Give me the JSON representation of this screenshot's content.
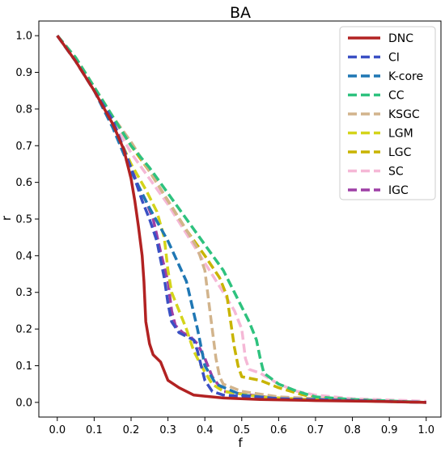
{
  "chart_data": {
    "type": "line",
    "title": "BA",
    "xlabel": "f",
    "ylabel": "r",
    "xlim": [
      -0.05,
      1.04
    ],
    "ylim": [
      -0.04,
      1.04
    ],
    "xticks": [
      "0.0",
      "0.1",
      "0.2",
      "0.3",
      "0.4",
      "0.5",
      "0.6",
      "0.7",
      "0.8",
      "0.9",
      "1.0"
    ],
    "yticks": [
      "0.0",
      "0.1",
      "0.2",
      "0.3",
      "0.4",
      "0.5",
      "0.6",
      "0.7",
      "0.8",
      "0.9",
      "1.0"
    ],
    "grid": false,
    "legend_position": "top-right",
    "series": [
      {
        "name": "DNC",
        "color": "#b22222",
        "dash": "solid",
        "points": [
          [
            0,
            1.0
          ],
          [
            0.05,
            0.93
          ],
          [
            0.1,
            0.85
          ],
          [
            0.15,
            0.76
          ],
          [
            0.18,
            0.69
          ],
          [
            0.2,
            0.61
          ],
          [
            0.21,
            0.55
          ],
          [
            0.22,
            0.48
          ],
          [
            0.23,
            0.4
          ],
          [
            0.235,
            0.33
          ],
          [
            0.24,
            0.22
          ],
          [
            0.25,
            0.16
          ],
          [
            0.26,
            0.13
          ],
          [
            0.28,
            0.11
          ],
          [
            0.3,
            0.06
          ],
          [
            0.33,
            0.04
          ],
          [
            0.37,
            0.02
          ],
          [
            0.45,
            0.012
          ],
          [
            0.55,
            0.008
          ],
          [
            0.7,
            0.005
          ],
          [
            0.85,
            0.003
          ],
          [
            1.0,
            0.0
          ]
        ]
      },
      {
        "name": "CI",
        "color": "#3a50c4",
        "dash": "dashed",
        "points": [
          [
            0,
            1.0
          ],
          [
            0.05,
            0.93
          ],
          [
            0.1,
            0.85
          ],
          [
            0.15,
            0.77
          ],
          [
            0.2,
            0.64
          ],
          [
            0.23,
            0.55
          ],
          [
            0.25,
            0.5
          ],
          [
            0.27,
            0.44
          ],
          [
            0.29,
            0.34
          ],
          [
            0.3,
            0.27
          ],
          [
            0.31,
            0.22
          ],
          [
            0.33,
            0.19
          ],
          [
            0.35,
            0.18
          ],
          [
            0.37,
            0.17
          ],
          [
            0.38,
            0.14
          ],
          [
            0.39,
            0.1
          ],
          [
            0.4,
            0.06
          ],
          [
            0.42,
            0.03
          ],
          [
            0.45,
            0.02
          ],
          [
            0.6,
            0.01
          ],
          [
            0.8,
            0.005
          ],
          [
            1.0,
            0.0
          ]
        ]
      },
      {
        "name": "K-core",
        "color": "#1f77b4",
        "dash": "dashed",
        "points": [
          [
            0,
            1.0
          ],
          [
            0.05,
            0.93
          ],
          [
            0.1,
            0.85
          ],
          [
            0.15,
            0.75
          ],
          [
            0.2,
            0.63
          ],
          [
            0.25,
            0.53
          ],
          [
            0.3,
            0.44
          ],
          [
            0.35,
            0.33
          ],
          [
            0.38,
            0.2
          ],
          [
            0.4,
            0.1
          ],
          [
            0.43,
            0.05
          ],
          [
            0.5,
            0.02
          ],
          [
            0.6,
            0.01
          ],
          [
            0.8,
            0.005
          ],
          [
            1.0,
            0.0
          ]
        ]
      },
      {
        "name": "CC",
        "color": "#2ec27e",
        "dash": "dashed",
        "points": [
          [
            0,
            1.0
          ],
          [
            0.05,
            0.94
          ],
          [
            0.1,
            0.86
          ],
          [
            0.15,
            0.78
          ],
          [
            0.2,
            0.7
          ],
          [
            0.25,
            0.64
          ],
          [
            0.3,
            0.57
          ],
          [
            0.35,
            0.5
          ],
          [
            0.4,
            0.43
          ],
          [
            0.45,
            0.36
          ],
          [
            0.48,
            0.3
          ],
          [
            0.5,
            0.26
          ],
          [
            0.52,
            0.22
          ],
          [
            0.54,
            0.17
          ],
          [
            0.55,
            0.12
          ],
          [
            0.56,
            0.08
          ],
          [
            0.6,
            0.05
          ],
          [
            0.65,
            0.03
          ],
          [
            0.7,
            0.015
          ],
          [
            0.8,
            0.008
          ],
          [
            1.0,
            0.0
          ]
        ]
      },
      {
        "name": "KSGC",
        "color": "#d2b48c",
        "dash": "dashed",
        "points": [
          [
            0,
            1.0
          ],
          [
            0.05,
            0.94
          ],
          [
            0.1,
            0.86
          ],
          [
            0.15,
            0.78
          ],
          [
            0.2,
            0.71
          ],
          [
            0.25,
            0.63
          ],
          [
            0.3,
            0.55
          ],
          [
            0.35,
            0.47
          ],
          [
            0.38,
            0.42
          ],
          [
            0.4,
            0.36
          ],
          [
            0.41,
            0.28
          ],
          [
            0.42,
            0.2
          ],
          [
            0.43,
            0.12
          ],
          [
            0.44,
            0.07
          ],
          [
            0.45,
            0.05
          ],
          [
            0.5,
            0.03
          ],
          [
            0.6,
            0.015
          ],
          [
            0.8,
            0.006
          ],
          [
            1.0,
            0.0
          ]
        ]
      },
      {
        "name": "LGM",
        "color": "#d4d41a",
        "dash": "dashed",
        "points": [
          [
            0,
            1.0
          ],
          [
            0.05,
            0.93
          ],
          [
            0.1,
            0.85
          ],
          [
            0.15,
            0.76
          ],
          [
            0.2,
            0.65
          ],
          [
            0.24,
            0.58
          ],
          [
            0.27,
            0.52
          ],
          [
            0.29,
            0.45
          ],
          [
            0.3,
            0.36
          ],
          [
            0.31,
            0.3
          ],
          [
            0.33,
            0.25
          ],
          [
            0.35,
            0.2
          ],
          [
            0.37,
            0.14
          ],
          [
            0.39,
            0.1
          ],
          [
            0.42,
            0.05
          ],
          [
            0.45,
            0.03
          ],
          [
            0.55,
            0.015
          ],
          [
            0.7,
            0.007
          ],
          [
            1.0,
            0.0
          ]
        ]
      },
      {
        "name": "LGC",
        "color": "#c8b400",
        "dash": "dashed",
        "points": [
          [
            0,
            1.0
          ],
          [
            0.05,
            0.94
          ],
          [
            0.1,
            0.86
          ],
          [
            0.15,
            0.78
          ],
          [
            0.2,
            0.7
          ],
          [
            0.25,
            0.63
          ],
          [
            0.3,
            0.55
          ],
          [
            0.35,
            0.47
          ],
          [
            0.4,
            0.4
          ],
          [
            0.44,
            0.34
          ],
          [
            0.46,
            0.29
          ],
          [
            0.47,
            0.22
          ],
          [
            0.48,
            0.15
          ],
          [
            0.49,
            0.1
          ],
          [
            0.5,
            0.07
          ],
          [
            0.55,
            0.06
          ],
          [
            0.6,
            0.04
          ],
          [
            0.65,
            0.025
          ],
          [
            0.7,
            0.012
          ],
          [
            0.8,
            0.006
          ],
          [
            1.0,
            0.0
          ]
        ]
      },
      {
        "name": "SC",
        "color": "#f5b8d6",
        "dash": "dashed",
        "points": [
          [
            0,
            1.0
          ],
          [
            0.05,
            0.94
          ],
          [
            0.1,
            0.86
          ],
          [
            0.15,
            0.77
          ],
          [
            0.2,
            0.68
          ],
          [
            0.25,
            0.61
          ],
          [
            0.3,
            0.54
          ],
          [
            0.35,
            0.46
          ],
          [
            0.4,
            0.38
          ],
          [
            0.45,
            0.3
          ],
          [
            0.48,
            0.25
          ],
          [
            0.5,
            0.2
          ],
          [
            0.51,
            0.12
          ],
          [
            0.52,
            0.09
          ],
          [
            0.55,
            0.08
          ],
          [
            0.6,
            0.05
          ],
          [
            0.65,
            0.03
          ],
          [
            0.7,
            0.02
          ],
          [
            0.8,
            0.01
          ],
          [
            1.0,
            0.003
          ]
        ]
      },
      {
        "name": "IGC",
        "color": "#9e3fa6",
        "dash": "dashed",
        "points": [
          [
            0,
            1.0
          ],
          [
            0.05,
            0.93
          ],
          [
            0.1,
            0.85
          ],
          [
            0.15,
            0.76
          ],
          [
            0.2,
            0.64
          ],
          [
            0.22,
            0.59
          ],
          [
            0.24,
            0.55
          ],
          [
            0.26,
            0.5
          ],
          [
            0.28,
            0.41
          ],
          [
            0.3,
            0.33
          ],
          [
            0.31,
            0.25
          ],
          [
            0.32,
            0.21
          ],
          [
            0.34,
            0.19
          ],
          [
            0.36,
            0.18
          ],
          [
            0.38,
            0.16
          ],
          [
            0.4,
            0.12
          ],
          [
            0.42,
            0.07
          ],
          [
            0.45,
            0.03
          ],
          [
            0.6,
            0.01
          ],
          [
            0.8,
            0.006
          ],
          [
            1.0,
            0.0
          ]
        ]
      }
    ]
  }
}
